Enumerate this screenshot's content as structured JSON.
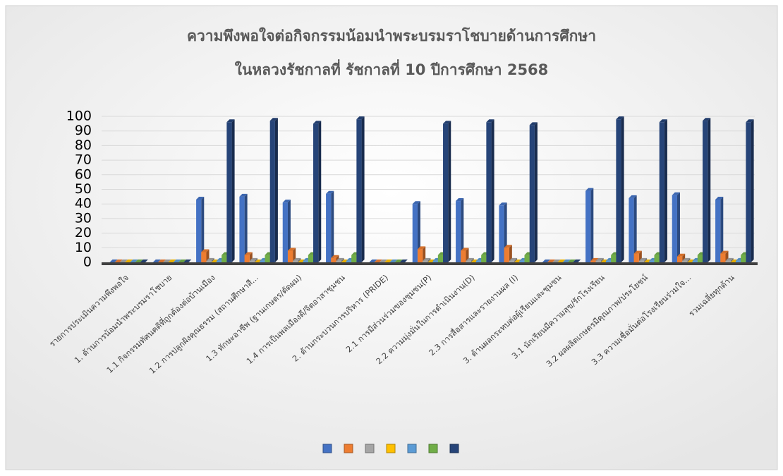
{
  "chart_data": {
    "type": "bar",
    "title": [
      "ความพึงพอใจต่อกิจกรรมน้อมนำพระบรมราโชบายด้านการศึกษา",
      "ในหลวงรัชกาลที่ รัชกาลที่ 10  ปีการศึกษา 2568"
    ],
    "categories": [
      "รายการประเมินความพึงพอใจ",
      "1. ด้านการน้อมนำพระบรมราโชบาย",
      "1.1 กิจกรรมทัศนคติที่ถูกต้องต่อบ้านเมือง",
      "1.2 การปลูกฝังคุณธรรม (สถานศึกษาสี...",
      "1.3 ทักษะอาชีพ (ฐานเกษตร/ตัดผม)",
      "1.4 การเป็นพลเมืองดี/จิตอาสาชุมชน",
      "2. ด้านกระบวนการบริหาร (PRIDE)",
      "2.1 การมีส่วนร่วมของชุมชน(P)",
      "2.2 ความมุ่งมั่นในการดำเนินงาน(D)",
      "2.3 การสื่อสารและรายงานผล (I)",
      "3. ด้านผลกระทบต่อผู้เรียนและชุมชน",
      "3.1 นักเรียนมีความสุข/รักโรงเรียน",
      "3.2 ผลผลิตเกษตรมีคุณภาพ/ประโยชน์",
      "3.3 ความเชื่อมั่นต่อโรงเรียนร่วมใจ...",
      "รวมเฉลี่ยทุกด้าน"
    ],
    "series": [
      {
        "color": "#4472c4",
        "values": [
          0,
          0,
          43,
          45,
          41,
          47,
          0,
          40,
          42,
          39,
          0,
          49,
          44,
          46,
          43
        ]
      },
      {
        "color": "#ed7d31",
        "values": [
          0,
          0,
          7,
          5,
          8,
          3,
          0,
          9,
          8,
          10,
          0,
          1,
          6,
          4,
          6
        ]
      },
      {
        "color": "#a5a5a5",
        "values": [
          0,
          0,
          1,
          1,
          1,
          1,
          0,
          1,
          1,
          1,
          0,
          1,
          1,
          1,
          1
        ]
      },
      {
        "color": "#ffc000",
        "values": [
          0,
          0,
          0,
          0,
          0,
          0,
          0,
          0,
          0,
          0,
          0,
          0,
          0,
          0,
          0
        ]
      },
      {
        "color": "#5b9bd5",
        "values": [
          0,
          0,
          1,
          1,
          1,
          1,
          0,
          1,
          1,
          1,
          0,
          1,
          1,
          1,
          1
        ]
      },
      {
        "color": "#70ad47",
        "values": [
          0,
          0,
          5,
          5,
          5,
          5,
          0,
          5,
          5,
          5,
          0,
          5,
          5,
          5,
          5
        ]
      },
      {
        "color": "#264478",
        "values": [
          0,
          0,
          96,
          97,
          95,
          98,
          0,
          95,
          96,
          94,
          0,
          98,
          96,
          97,
          96
        ]
      }
    ],
    "ylim": [
      0,
      100
    ],
    "yticks": [
      0,
      10,
      20,
      30,
      40,
      50,
      60,
      70,
      80,
      90,
      100
    ],
    "grid": true,
    "legend": "bottom"
  }
}
